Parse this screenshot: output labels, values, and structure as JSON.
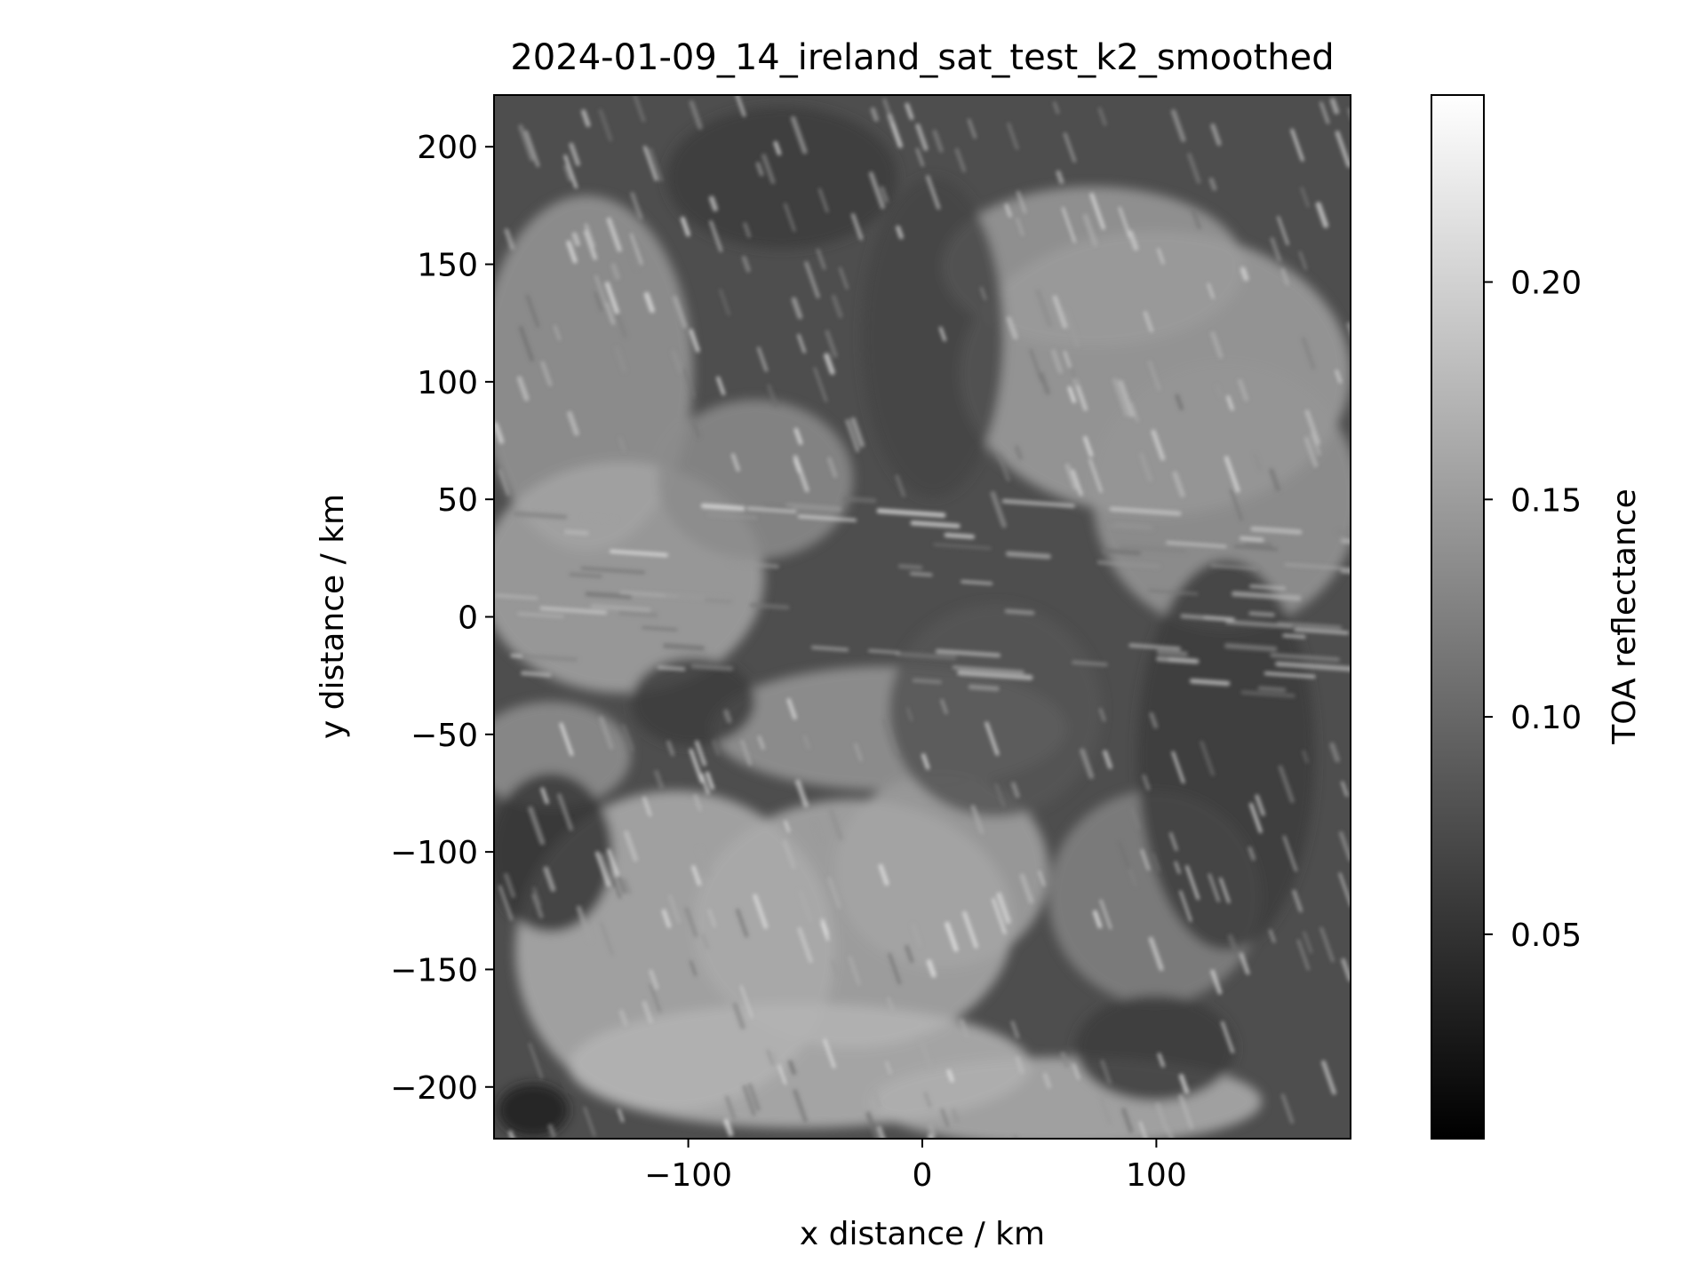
{
  "chart_data": {
    "type": "heatmap",
    "title": "2024-01-09_14_ireland_sat_test_k2_smoothed",
    "xlabel": "x distance / km",
    "ylabel": "y distance / km",
    "xlim": [
      -183,
      183
    ],
    "ylim": [
      -222,
      222
    ],
    "x_ticks": [
      {
        "value": -100,
        "label": "−100"
      },
      {
        "value": 0,
        "label": "0"
      },
      {
        "value": 100,
        "label": "100"
      }
    ],
    "y_ticks": [
      {
        "value": 200,
        "label": "200"
      },
      {
        "value": 150,
        "label": "150"
      },
      {
        "value": 100,
        "label": "100"
      },
      {
        "value": 50,
        "label": "50"
      },
      {
        "value": 0,
        "label": "0"
      },
      {
        "value": -50,
        "label": "−50"
      },
      {
        "value": -100,
        "label": "−100"
      },
      {
        "value": -150,
        "label": "−150"
      },
      {
        "value": -200,
        "label": "−200"
      }
    ],
    "colorbar": {
      "label": "TOA reflectance",
      "colormap": "gray",
      "range": [
        0.003,
        0.243
      ],
      "ticks": [
        {
          "value": 0.05,
          "label": "0.05"
        },
        {
          "value": 0.1,
          "label": "0.10"
        },
        {
          "value": 0.15,
          "label": "0.15"
        },
        {
          "value": 0.2,
          "label": "0.20"
        }
      ]
    },
    "grid": false,
    "image_description_values": {
      "note_regions": [
        {
          "x": -90,
          "y": 60,
          "value": 0.17
        },
        {
          "x": 40,
          "y": 0,
          "value": 0.08
        },
        {
          "x": 150,
          "y": -60,
          "value": 0.06
        },
        {
          "x": -30,
          "y": -150,
          "value": 0.16
        },
        {
          "x": 120,
          "y": 160,
          "value": 0.15
        }
      ]
    }
  }
}
